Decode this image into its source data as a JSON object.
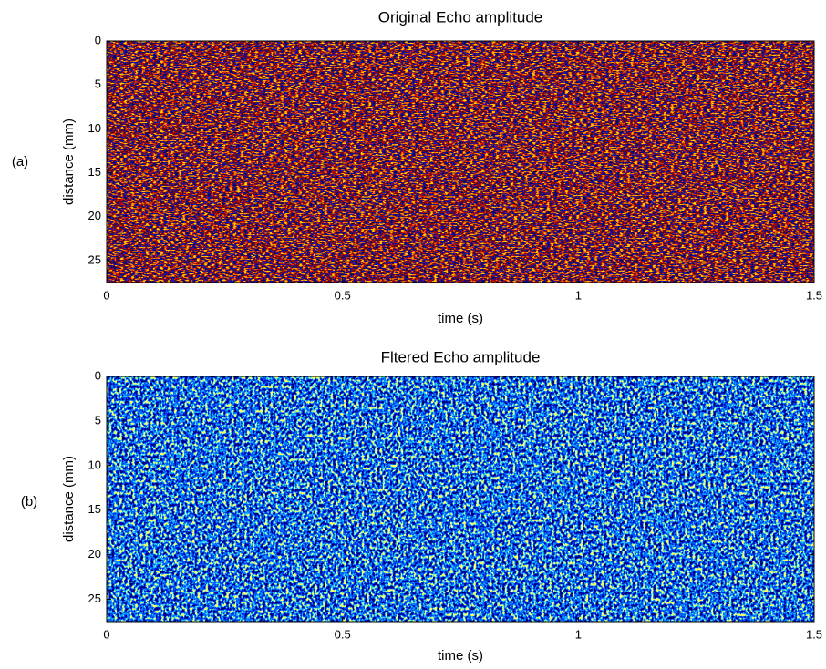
{
  "chart_data": [
    {
      "type": "heatmap",
      "title": "Original Echo amplitude",
      "panel_label": "(a)",
      "x_label": "time (s)",
      "y_label": "distance (mm)",
      "xlim": [
        0,
        1.5
      ],
      "xticks": [
        0,
        0.5,
        1,
        1.5
      ],
      "ylim": [
        0,
        27.5
      ],
      "yticks": [
        0,
        5,
        10,
        15,
        20,
        25
      ],
      "y_reversed": true,
      "colors": [
        "#000070",
        "#1030ff",
        "#500000",
        "#a00000",
        "#ff2800",
        "#ffd000"
      ]
    },
    {
      "type": "heatmap",
      "title": "Fltered Echo amplitude",
      "panel_label": "(b)",
      "x_label": "time (s)",
      "y_label": "distance (mm)",
      "xlim": [
        0,
        1.5
      ],
      "xticks": [
        0,
        0.5,
        1,
        1.5
      ],
      "ylim": [
        0,
        27.5
      ],
      "yticks": [
        0,
        5,
        10,
        15,
        20,
        25
      ],
      "y_reversed": true,
      "colors": [
        "#000080",
        "#0018c8",
        "#0048ff",
        "#0090ff",
        "#30d8ff",
        "#ffff60"
      ]
    }
  ]
}
